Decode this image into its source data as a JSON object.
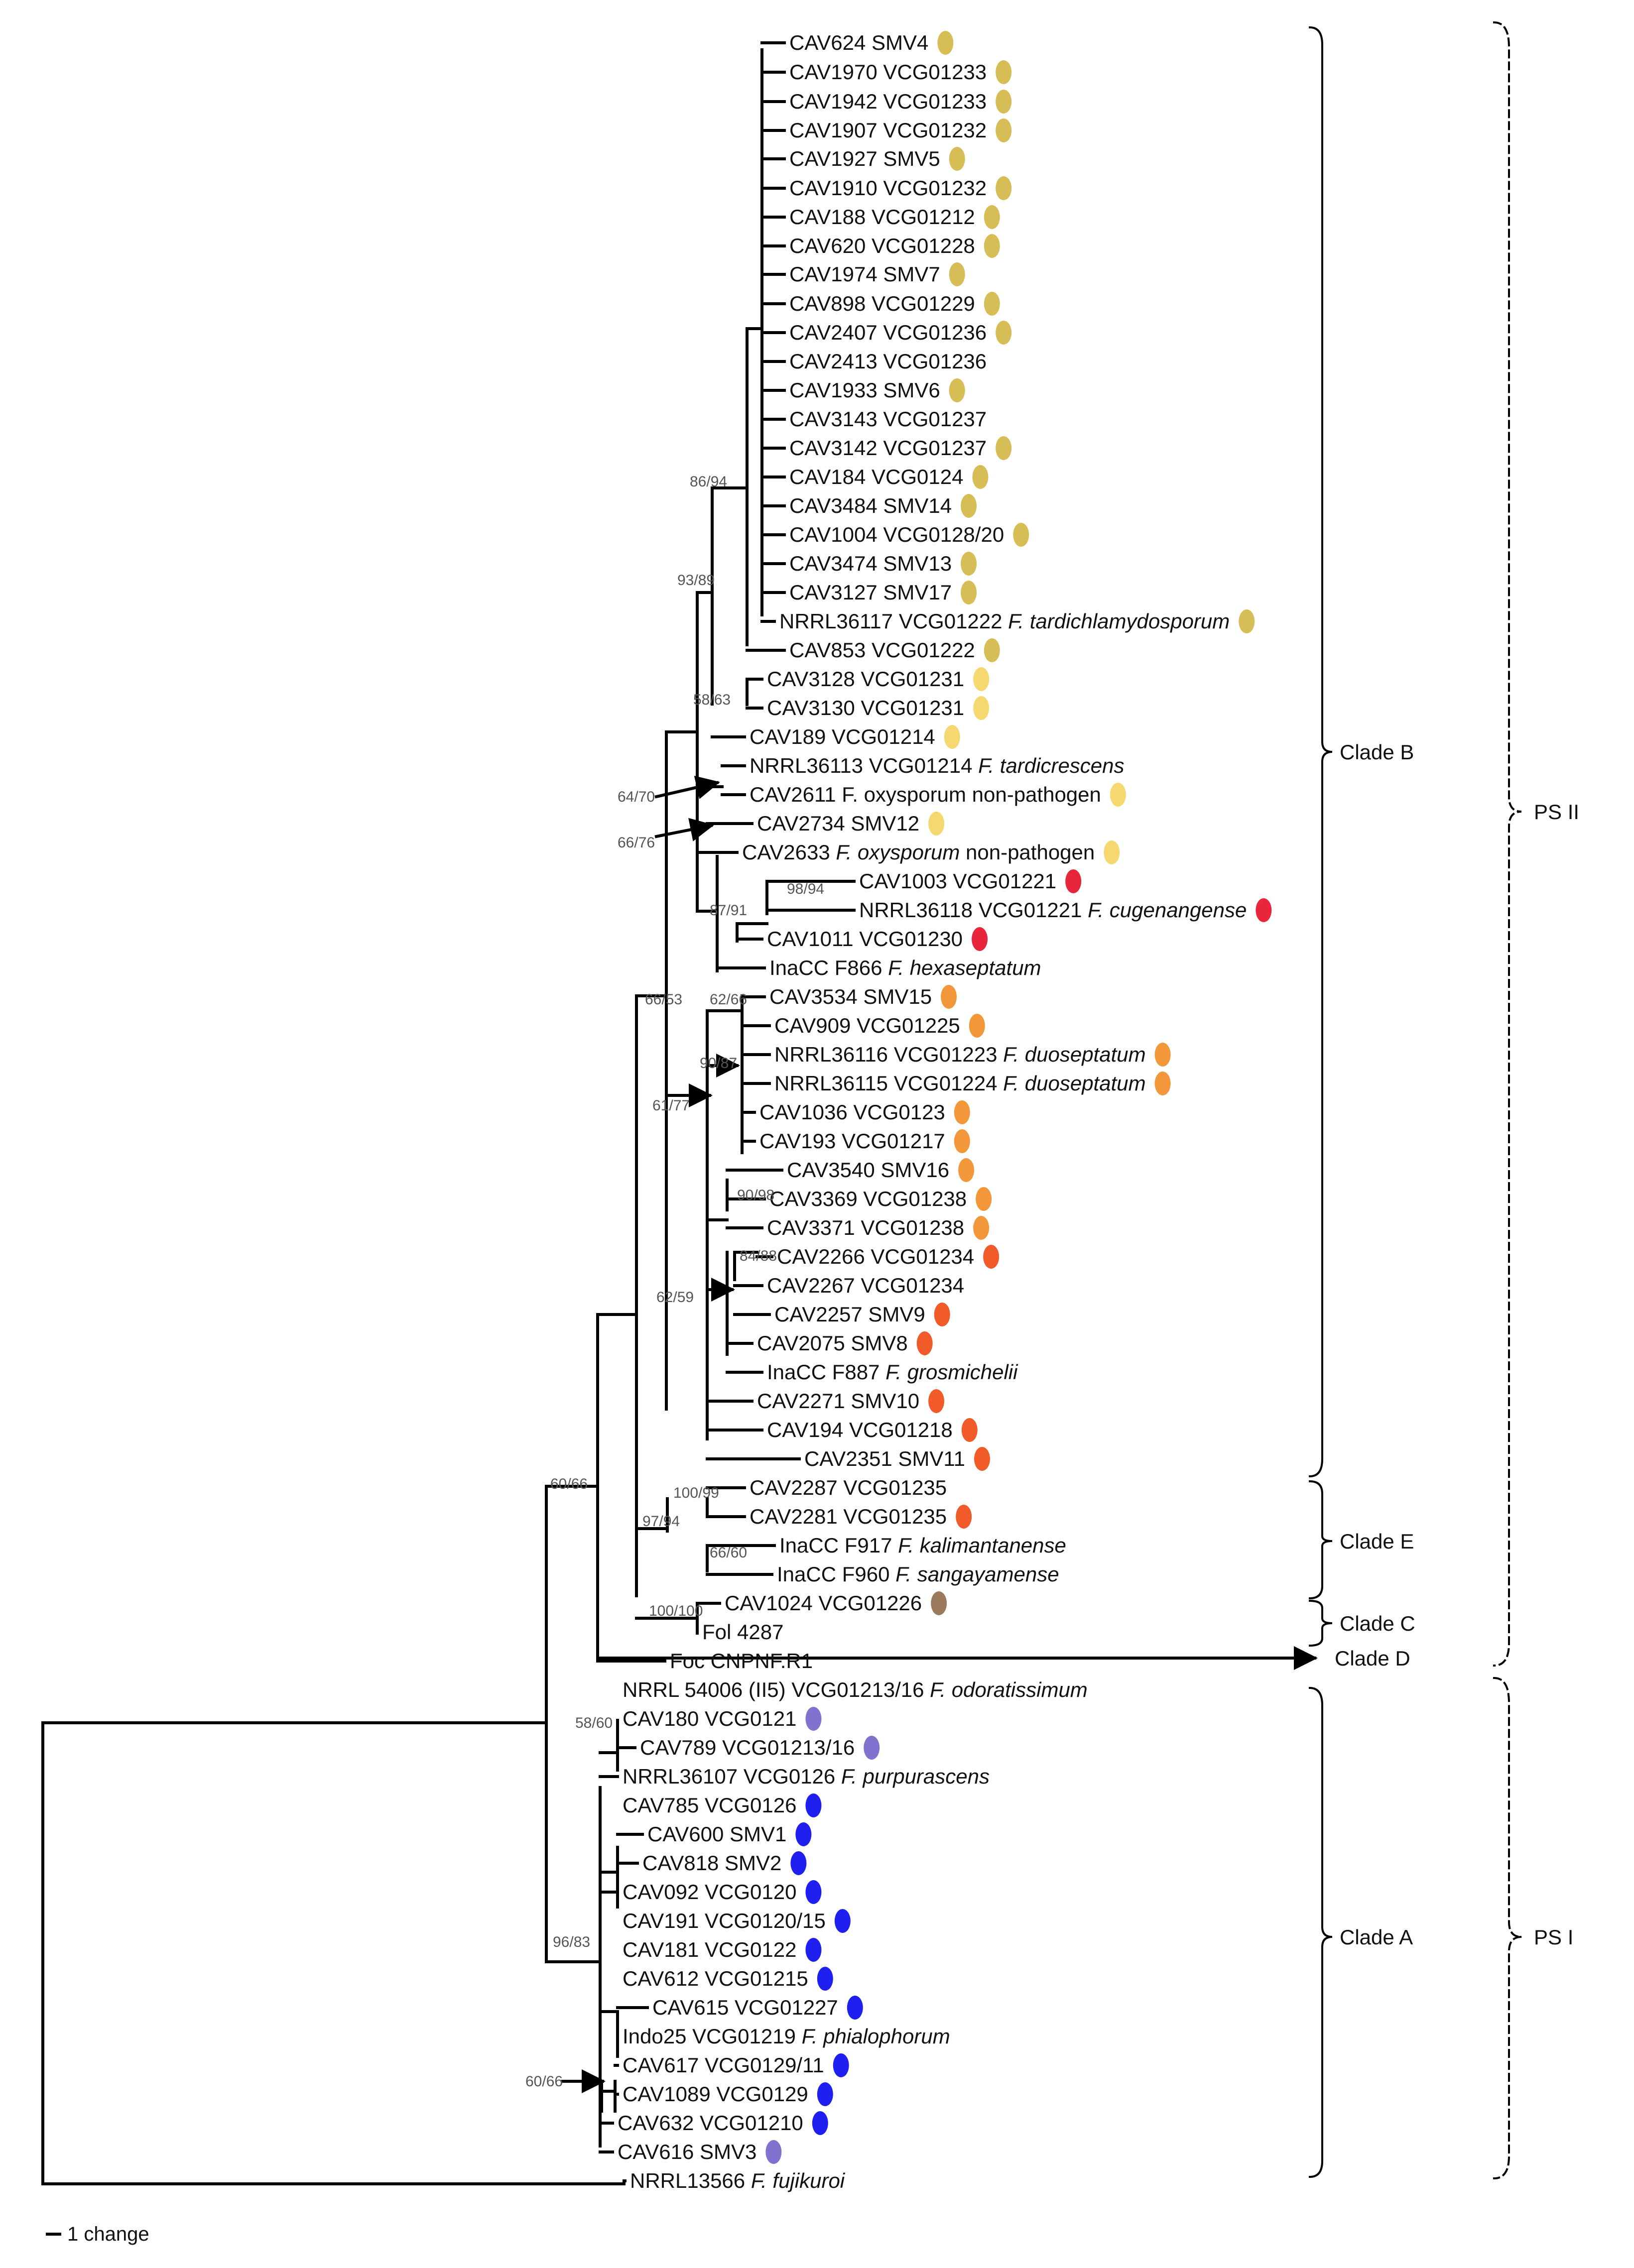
{
  "tips": [
    {
      "id": "t1",
      "label": "CAV624 SMV4",
      "color": "#d6bd55"
    },
    {
      "id": "t2",
      "label": "CAV1970 VCG01233",
      "color": "#d6bd55"
    },
    {
      "id": "t3",
      "label": "CAV1942 VCG01233",
      "color": "#d6bd55"
    },
    {
      "id": "t4",
      "label": "CAV1907 VCG01232",
      "color": "#d6bd55"
    },
    {
      "id": "t5",
      "label": "CAV1927 SMV5",
      "color": "#d6bd55"
    },
    {
      "id": "t6",
      "label": "CAV1910 VCG01232",
      "color": "#d6bd55"
    },
    {
      "id": "t7",
      "label": "CAV188 VCG01212",
      "color": "#d6bd55"
    },
    {
      "id": "t8",
      "label": "CAV620 VCG01228",
      "color": "#d6bd55"
    },
    {
      "id": "t9",
      "label": "CAV1974 SMV7",
      "color": "#d6bd55"
    },
    {
      "id": "t10",
      "label": "CAV898 VCG01229",
      "color": "#d6bd55"
    },
    {
      "id": "t11",
      "label": "CAV2407 VCG01236",
      "color": "#d6bd55"
    },
    {
      "id": "t12",
      "label": "CAV2413 VCG01236"
    },
    {
      "id": "t13",
      "label": "CAV1933 SMV6",
      "color": "#d6bd55"
    },
    {
      "id": "t14",
      "label": "CAV3143 VCG01237"
    },
    {
      "id": "t15",
      "label": "CAV3142 VCG01237",
      "color": "#d6bd55"
    },
    {
      "id": "t16",
      "label": "CAV184 VCG0124",
      "color": "#d6bd55"
    },
    {
      "id": "t17",
      "label": "CAV3484 SMV14",
      "color": "#d6bd55"
    },
    {
      "id": "t18",
      "label": "CAV1004 VCG0128/20",
      "color": "#d6bd55"
    },
    {
      "id": "t19",
      "label": "CAV3474 SMV13",
      "color": "#d6bd55"
    },
    {
      "id": "t20",
      "label": "CAV3127 SMV17",
      "color": "#d6bd55"
    },
    {
      "id": "t21",
      "label": "NRRL36117 VCG01222",
      "species": "F. tardichlamydosporum",
      "color": "#d6bd55"
    },
    {
      "id": "t22",
      "label": "CAV853 VCG01222",
      "color": "#d6bd55"
    },
    {
      "id": "t23",
      "label": "CAV3128 VCG01231",
      "color": "#f6d870"
    },
    {
      "id": "t24",
      "label": "CAV3130 VCG01231",
      "color": "#f6d870"
    },
    {
      "id": "t25",
      "label": "CAV189 VCG01214",
      "color": "#f6d870"
    },
    {
      "id": "t26",
      "label": "NRRL36113 VCG01214",
      "species": "F. tardicrescens"
    },
    {
      "id": "t27",
      "label": "CAV2611 F. oxysporum non-pathogen",
      "color": "#f6d870"
    },
    {
      "id": "t28",
      "label": "CAV2734 SMV12",
      "color": "#f6d870"
    },
    {
      "id": "t29",
      "label": "CAV2633",
      "species": "F. oxysporum",
      "suffix": " non-pathogen",
      "color": "#f6d870"
    },
    {
      "id": "t30",
      "label": "CAV1003 VCG01221",
      "color": "#e8253a"
    },
    {
      "id": "t31",
      "label": "NRRL36118 VCG01221",
      "species": "F. cugenangense",
      "color": "#e8253a"
    },
    {
      "id": "t32",
      "label": "CAV1011 VCG01230",
      "color": "#e8253a"
    },
    {
      "id": "t33",
      "label": "InaCC F866",
      "species": "F. hexaseptatum"
    },
    {
      "id": "t34",
      "label": "CAV3534 SMV15",
      "color": "#f2973a"
    },
    {
      "id": "t35",
      "label": "CAV909 VCG01225",
      "color": "#f2973a"
    },
    {
      "id": "t36",
      "label": "NRRL36116 VCG01223",
      "species": "F. duoseptatum",
      "color": "#f2973a"
    },
    {
      "id": "t37",
      "label": "NRRL36115 VCG01224",
      "species": "F. duoseptatum",
      "color": "#f2973a"
    },
    {
      "id": "t38",
      "label": "CAV1036 VCG0123",
      "color": "#f2973a"
    },
    {
      "id": "t39",
      "label": "CAV193 VCG01217",
      "color": "#f2973a"
    },
    {
      "id": "t40",
      "label": "CAV3540 SMV16",
      "color": "#f2973a"
    },
    {
      "id": "t41",
      "label": "CAV3369 VCG01238",
      "color": "#f2973a"
    },
    {
      "id": "t42",
      "label": "CAV3371 VCG01238",
      "color": "#f2973a"
    },
    {
      "id": "t43",
      "label": "CAV2266 VCG01234",
      "color": "#f15a29"
    },
    {
      "id": "t44",
      "label": "CAV2267 VCG01234"
    },
    {
      "id": "t45",
      "label": "CAV2257 SMV9",
      "color": "#f15a29"
    },
    {
      "id": "t46",
      "label": "CAV2075 SMV8",
      "color": "#f15a29"
    },
    {
      "id": "t47",
      "label": "InaCC F887",
      "species": "F. grosmichelii"
    },
    {
      "id": "t48",
      "label": "CAV2271 SMV10",
      "color": "#f15a29"
    },
    {
      "id": "t49",
      "label": "CAV194 VCG01218",
      "color": "#f15a29"
    },
    {
      "id": "t50",
      "label": "CAV2351 SMV11",
      "color": "#f15a29"
    },
    {
      "id": "t51",
      "label": "CAV2287 VCG01235"
    },
    {
      "id": "t52",
      "label": "CAV2281 VCG01235",
      "color": "#f15a29"
    },
    {
      "id": "t53",
      "label": "InaCC F917",
      "species": "F. kalimantanense"
    },
    {
      "id": "t54",
      "label": "InaCC F960",
      "species": "F. sangayamense"
    },
    {
      "id": "t55",
      "label": "CAV1024 VCG01226",
      "color": "#9b7a5e"
    },
    {
      "id": "t56",
      "label": "Fol 4287"
    },
    {
      "id": "t57",
      "label": "Foc CNPNF.R1"
    },
    {
      "id": "t58",
      "label": "NRRL 54006 (II5) VCG01213/16",
      "species": "F. odoratissimum"
    },
    {
      "id": "t59",
      "label": "CAV180 VCG0121",
      "color": "#7f73cf"
    },
    {
      "id": "t60",
      "label": "CAV789 VCG01213/16",
      "color": "#7f73cf"
    },
    {
      "id": "t61",
      "label": "NRRL36107 VCG0126",
      "species": "F. purpurascens"
    },
    {
      "id": "t62",
      "label": "CAV785 VCG0126",
      "color": "#1f1ff0"
    },
    {
      "id": "t63",
      "label": "CAV600 SMV1",
      "color": "#1f1ff0"
    },
    {
      "id": "t64",
      "label": "CAV818 SMV2",
      "color": "#1f1ff0"
    },
    {
      "id": "t65",
      "label": "CAV092 VCG0120",
      "color": "#1f1ff0"
    },
    {
      "id": "t66",
      "label": "CAV191 VCG0120/15",
      "color": "#1f1ff0"
    },
    {
      "id": "t67",
      "label": "CAV181 VCG0122",
      "color": "#1f1ff0"
    },
    {
      "id": "t68",
      "label": "CAV612 VCG01215",
      "color": "#1f1ff0"
    },
    {
      "id": "t69",
      "label": "CAV615 VCG01227",
      "color": "#1f1ff0"
    },
    {
      "id": "t70",
      "label": "Indo25 VCG01219",
      "species": "F. phialophorum"
    },
    {
      "id": "t71",
      "label": "CAV617 VCG0129/11",
      "color": "#1f1ff0"
    },
    {
      "id": "t72",
      "label": "CAV1089 VCG0129",
      "color": "#1f1ff0"
    },
    {
      "id": "t73",
      "label": "CAV632 VCG01210",
      "color": "#1f1ff0"
    },
    {
      "id": "t74",
      "label": "CAV616 SMV3",
      "color": "#7f73cf"
    },
    {
      "id": "t75",
      "label": "NRRL13566",
      "species": "F. fujikuroi"
    }
  ],
  "support_values": [
    {
      "id": "s1",
      "label": "86/94"
    },
    {
      "id": "s2",
      "label": "93/89"
    },
    {
      "id": "s3",
      "label": "58/63"
    },
    {
      "id": "s4",
      "label": "64/70"
    },
    {
      "id": "s5",
      "label": "66/76"
    },
    {
      "id": "s6",
      "label": "98/94"
    },
    {
      "id": "s7",
      "label": "87/91"
    },
    {
      "id": "s8",
      "label": "66/53"
    },
    {
      "id": "s9",
      "label": "62/66"
    },
    {
      "id": "s10",
      "label": "90/87"
    },
    {
      "id": "s11",
      "label": "61/77"
    },
    {
      "id": "s12",
      "label": "90/98"
    },
    {
      "id": "s13",
      "label": "84/88"
    },
    {
      "id": "s14",
      "label": "62/59"
    },
    {
      "id": "s15",
      "label": "60/66"
    },
    {
      "id": "s16",
      "label": "100/99"
    },
    {
      "id": "s17",
      "label": "97/94"
    },
    {
      "id": "s18",
      "label": "66/60"
    },
    {
      "id": "s19",
      "label": "100/100"
    },
    {
      "id": "s20",
      "label": "58/60"
    },
    {
      "id": "s21",
      "label": "96/83"
    },
    {
      "id": "s22",
      "label": "60/66"
    }
  ],
  "clades": [
    {
      "id": "c1",
      "label": "Clade B"
    },
    {
      "id": "c2",
      "label": "Clade E"
    },
    {
      "id": "c3",
      "label": "Clade C"
    },
    {
      "id": "c4",
      "label": "Clade D"
    },
    {
      "id": "c5",
      "label": "Clade A"
    }
  ],
  "groups": [
    {
      "id": "g1",
      "label": "PS II"
    },
    {
      "id": "g2",
      "label": "PS I"
    }
  ],
  "scale": {
    "label": "1 change"
  }
}
